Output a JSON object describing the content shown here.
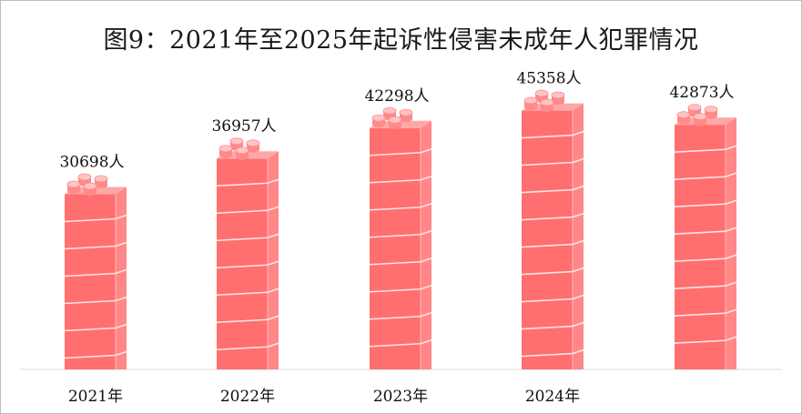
{
  "title": "图9：2021年至2025年起诉性侵害未成年人犯罪情况",
  "chart_data": {
    "type": "bar",
    "title": "图9：2021年至2025年起诉性侵害未成年人犯罪情况",
    "categories": [
      "2021年",
      "2022年",
      "2023年",
      "2024年",
      ""
    ],
    "values": [
      30698,
      36957,
      42298,
      45358,
      42873
    ],
    "value_labels": [
      "30698人",
      "36957人",
      "42298人",
      "45358人",
      "42873人"
    ],
    "unit": "人",
    "xlabel": "",
    "ylabel": "",
    "ylim": [
      0,
      48000
    ],
    "grid": false,
    "legend": "none",
    "colors": {
      "bar_front": "#ff6f6f",
      "bar_side": "#ff8787",
      "bar_top": "#ffa7a7",
      "brick_line": "#ffe3e3",
      "stud": "#ffc4c4",
      "stud_rim": "#ff8a8a",
      "axis": "#d9d9d9"
    }
  }
}
